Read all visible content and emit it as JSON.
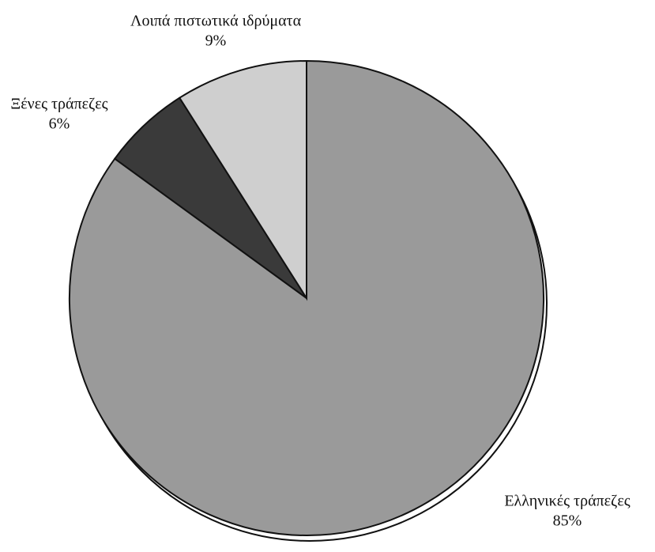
{
  "chart_data": {
    "type": "pie",
    "categories": [
      "Ελληνικές τράπεζες",
      "Ξένες τράπεζες",
      "Λοιπά πιστωτικά ιδρύματα"
    ],
    "values": [
      85,
      6,
      9
    ],
    "value_labels": [
      "85%",
      "6%",
      "9%"
    ],
    "colors": [
      "#9a9a9a",
      "#3a3a3a",
      "#cfcfcf"
    ]
  }
}
